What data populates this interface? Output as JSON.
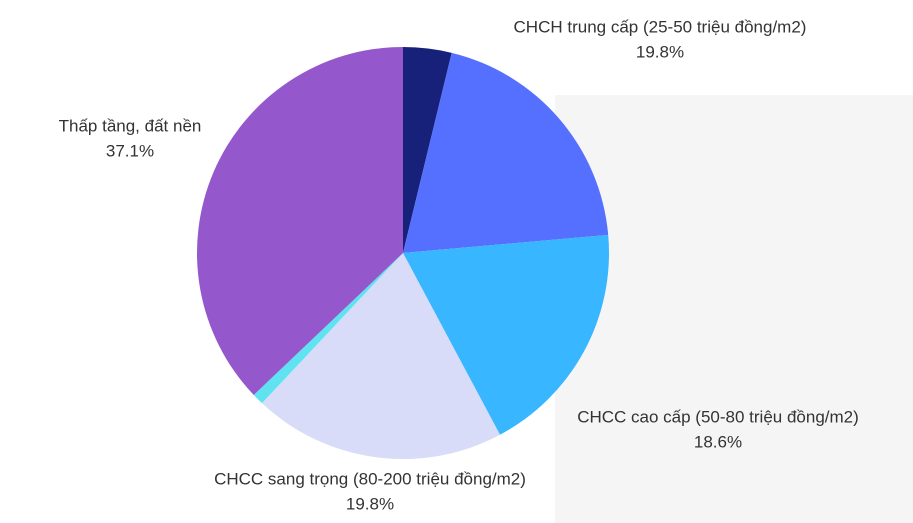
{
  "chart_data": {
    "type": "pie",
    "categories": [
      null,
      "CHCH trung cấp (25-50 triệu đồng/m2)",
      "CHCC cao cấp (50-80 triệu đồng/m2)",
      "CHCC sang trọng (80-200 triệu đồng/m2)",
      null,
      "Thấp tầng, đất nền"
    ],
    "values": [
      3.8,
      19.8,
      18.6,
      19.8,
      0.9,
      37.1
    ],
    "value_labels": [
      null,
      "19.8%",
      "18.6%",
      "19.8%",
      null,
      "37.1%"
    ],
    "colors": [
      "#18217a",
      "#5570ff",
      "#38b6ff",
      "#d8dcf8",
      "#5fe3f0",
      "#9557cc"
    ]
  }
}
